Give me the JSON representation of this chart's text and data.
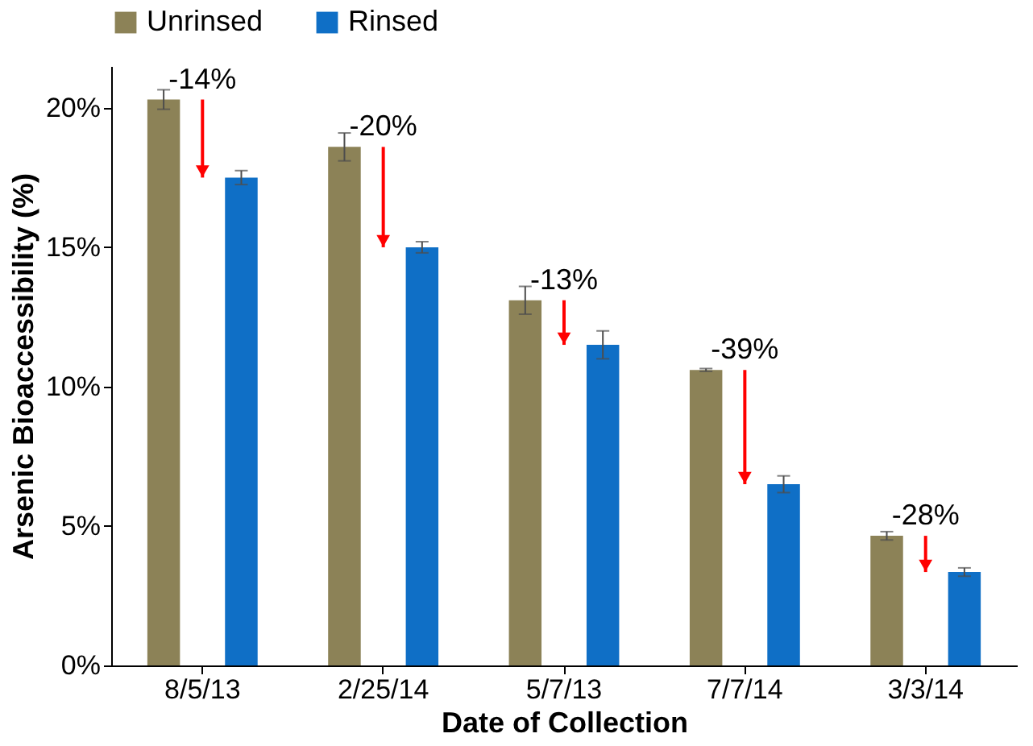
{
  "chart_data": {
    "type": "bar",
    "xlabel": "Date of Collection",
    "ylabel": "Arsenic Bioaccessibility (%)",
    "categories": [
      "8/5/13",
      "2/25/14",
      "5/7/13",
      "7/7/14",
      "3/3/14"
    ],
    "series": [
      {
        "name": "Unrinsed",
        "color": "#8c8257",
        "values": [
          20.3,
          18.6,
          13.1,
          10.6,
          4.65
        ],
        "errors": [
          0.35,
          0.5,
          0.5,
          0.05,
          0.15
        ]
      },
      {
        "name": "Rinsed",
        "color": "#0f6fc6",
        "values": [
          17.5,
          15.0,
          11.5,
          6.5,
          3.35
        ],
        "errors": [
          0.25,
          0.2,
          0.5,
          0.3,
          0.15
        ]
      }
    ],
    "ylim": [
      0,
      21.5
    ],
    "yticks": [
      {
        "value": 0,
        "label": "0%"
      },
      {
        "value": 5,
        "label": "5%"
      },
      {
        "value": 10,
        "label": "10%"
      },
      {
        "value": 15,
        "label": "15%"
      },
      {
        "value": 20,
        "label": "20%"
      }
    ],
    "annotations": [
      "-14%",
      "-20%",
      "-13%",
      "-39%",
      "-28%"
    ],
    "grid": false,
    "legend": "top"
  }
}
